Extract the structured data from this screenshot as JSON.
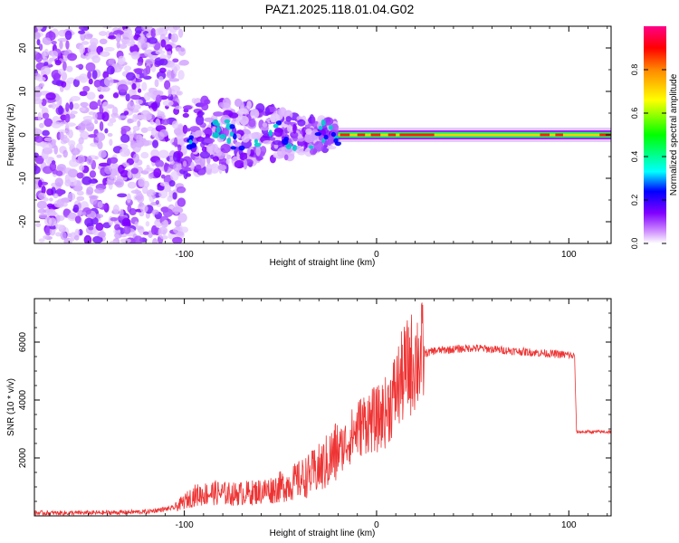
{
  "title": "PAZ1.2025.118.01.04.G02",
  "chart_data": [
    {
      "type": "heatmap",
      "xlabel": "Height of straight line (km)",
      "ylabel": "Frequency (Hz)",
      "xlim": [
        -178,
        122
      ],
      "ylim": [
        -25,
        25
      ],
      "xticks": [
        -100,
        0,
        100
      ],
      "yticks": [
        -20,
        -10,
        0,
        10,
        20
      ],
      "colorbar": {
        "label": "Normalized spectral amplitude",
        "lim": [
          0,
          1
        ],
        "ticks": [
          0.0,
          0.2,
          0.4,
          0.6,
          0.8
        ]
      }
    },
    {
      "type": "line",
      "xlabel": "Height of straight line (km)",
      "ylabel": "SNR (10 * v/v)",
      "xlim": [
        -178,
        122
      ],
      "ylim": [
        0,
        7500
      ],
      "xticks": [
        -100,
        0,
        100
      ],
      "yticks": [
        2000,
        4000,
        6000
      ],
      "color": "#ee3333",
      "series": [
        {
          "x": [
            -178,
            -160,
            -140,
            -120,
            -105,
            -95,
            -85,
            -75,
            -65,
            -55,
            -45,
            -35,
            -28,
            -22,
            -16,
            -10,
            -5,
            0,
            5,
            10,
            15,
            20,
            25,
            30,
            40,
            50,
            60,
            70,
            80,
            90,
            100,
            103,
            104,
            110,
            122
          ],
          "values": [
            100,
            100,
            110,
            140,
            280,
            700,
            800,
            750,
            800,
            900,
            1100,
            1400,
            1700,
            2100,
            2500,
            3000,
            3300,
            3300,
            3600,
            4300,
            5000,
            5400,
            5600,
            5700,
            5750,
            5800,
            5750,
            5700,
            5650,
            5600,
            5550,
            5500,
            2900,
            2900,
            2900
          ]
        }
      ]
    }
  ]
}
